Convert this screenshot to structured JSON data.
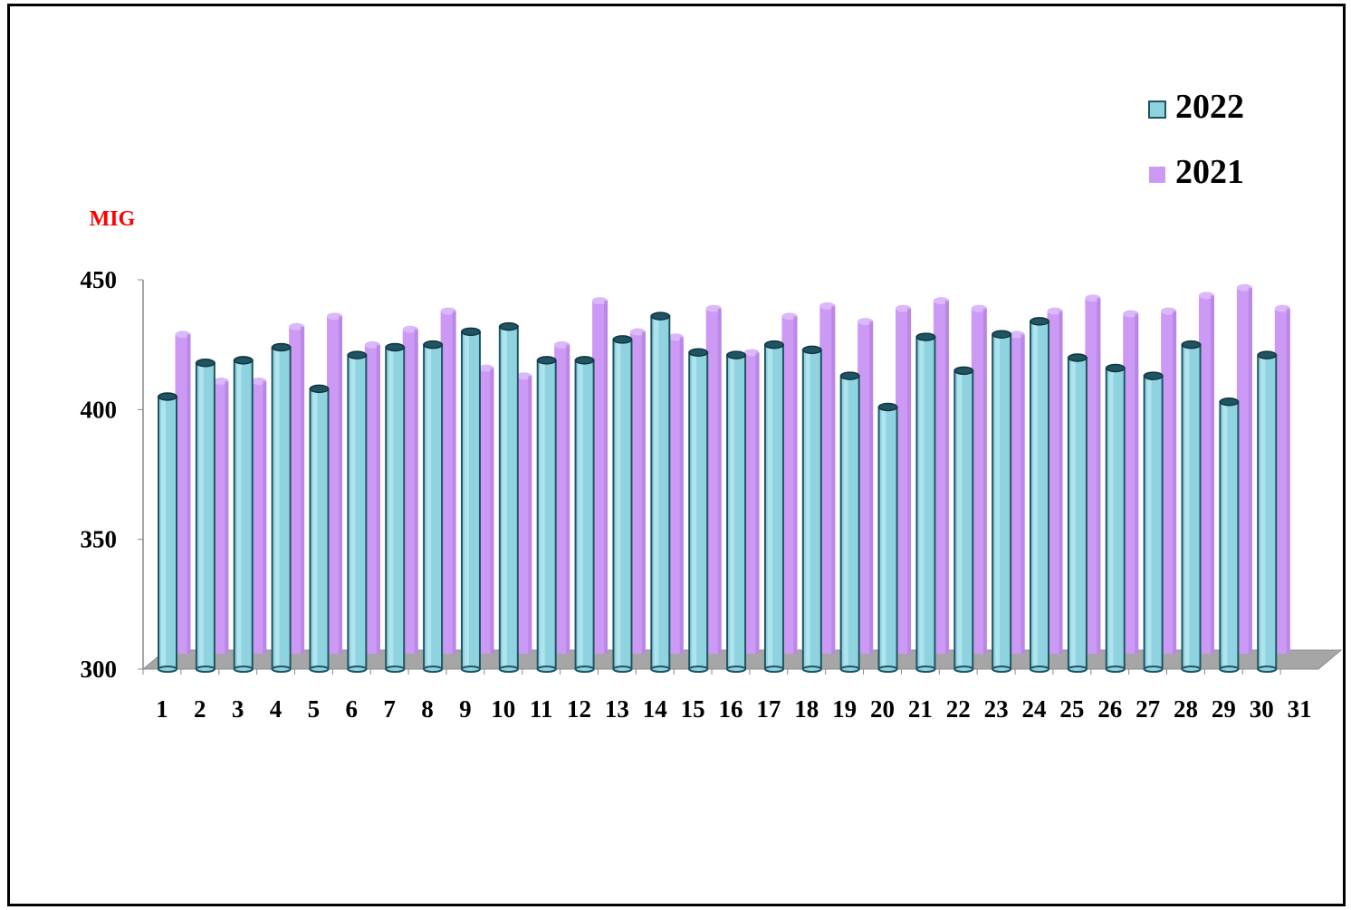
{
  "chart_data": {
    "type": "bar",
    "variant": "3d-cylinder",
    "ylabel": "MIG",
    "ylim": [
      300,
      450
    ],
    "yticks": [
      300,
      350,
      400,
      450
    ],
    "categories": [
      "1",
      "2",
      "3",
      "4",
      "5",
      "6",
      "7",
      "8",
      "9",
      "10",
      "11",
      "12",
      "13",
      "14",
      "15",
      "16",
      "17",
      "18",
      "19",
      "20",
      "21",
      "22",
      "23",
      "24",
      "25",
      "26",
      "27",
      "28",
      "29",
      "30",
      "31"
    ],
    "series": [
      {
        "name": "2022",
        "color": "#8fd3e0",
        "edge_color": "#1f5563",
        "values": [
          405,
          418,
          419,
          424,
          408,
          421,
          424,
          425,
          430,
          432,
          419,
          419,
          427,
          436,
          422,
          421,
          425,
          423,
          413,
          401,
          428,
          415,
          429,
          434,
          420,
          416,
          413,
          425,
          403,
          421,
          null
        ]
      },
      {
        "name": "2021",
        "color": "#cc99f5",
        "values": [
          423,
          405,
          405,
          426,
          430,
          419,
          425,
          432,
          410,
          407,
          419,
          436,
          424,
          422,
          433,
          416,
          430,
          434,
          428,
          433,
          436,
          433,
          423,
          432,
          437,
          431,
          432,
          438,
          441,
          433,
          null
        ]
      }
    ],
    "legend": {
      "position": "top-right",
      "entries": [
        "2022",
        "2021"
      ]
    },
    "grid": false
  }
}
